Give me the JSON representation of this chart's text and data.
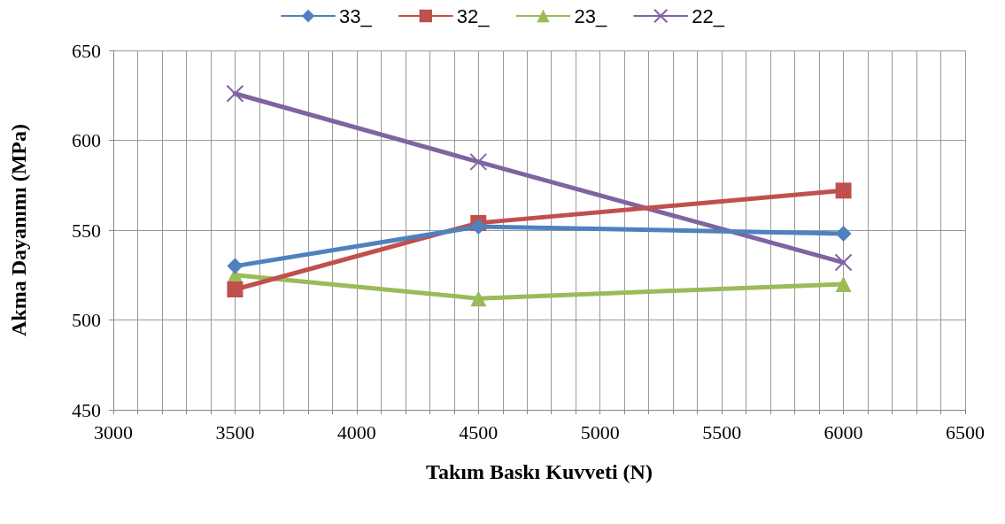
{
  "chart_data": {
    "type": "line",
    "xlabel": "Takım Baskı Kuvveti (N)",
    "ylabel": "Akma Dayanımı (MPa)",
    "x": [
      3500,
      4500,
      6000
    ],
    "series": [
      {
        "name": "33_",
        "color": "#4f81bd",
        "marker": "diamond",
        "values": [
          530,
          552,
          548
        ]
      },
      {
        "name": "32_",
        "color": "#c0504d",
        "marker": "square",
        "values": [
          517,
          554,
          572
        ]
      },
      {
        "name": "23_",
        "color": "#9bbb59",
        "marker": "triangle",
        "values": [
          525,
          512,
          520
        ]
      },
      {
        "name": "22_",
        "color": "#8064a2",
        "marker": "cross",
        "values": [
          626,
          588,
          532
        ]
      }
    ],
    "xlim": [
      3000,
      6500
    ],
    "xticks": [
      3000,
      {
        "value": 3100,
        "label": null
      },
      {
        "value": 3200,
        "label": null
      },
      {
        "value": 3300,
        "label": null
      },
      {
        "value": 3400,
        "label": null
      },
      3500,
      {
        "value": 3600,
        "label": null
      },
      {
        "value": 3700,
        "label": null
      },
      {
        "value": 3800,
        "label": null
      },
      {
        "value": 3900,
        "label": null
      },
      4000,
      {
        "value": 4100,
        "label": null
      },
      {
        "value": 4200,
        "label": null
      },
      {
        "value": 4300,
        "label": null
      },
      {
        "value": 4400,
        "label": null
      },
      4500,
      {
        "value": 4600,
        "label": null
      },
      {
        "value": 4700,
        "label": null
      },
      {
        "value": 4800,
        "label": null
      },
      {
        "value": 4900,
        "label": null
      },
      5000,
      {
        "value": 5100,
        "label": null
      },
      {
        "value": 5200,
        "label": null
      },
      {
        "value": 5300,
        "label": null
      },
      {
        "value": 5400,
        "label": null
      },
      5500,
      {
        "value": 5600,
        "label": null
      },
      {
        "value": 5700,
        "label": null
      },
      {
        "value": 5800,
        "label": null
      },
      {
        "value": 5900,
        "label": null
      },
      6000,
      {
        "value": 6100,
        "label": null
      },
      {
        "value": 6200,
        "label": null
      },
      {
        "value": 6300,
        "label": null
      },
      {
        "value": 6400,
        "label": null
      },
      6500
    ],
    "ylim": [
      450,
      650
    ],
    "yticks": [
      450,
      500,
      550,
      600,
      650
    ],
    "grid": true,
    "legend": "top",
    "line_style": "solid"
  }
}
